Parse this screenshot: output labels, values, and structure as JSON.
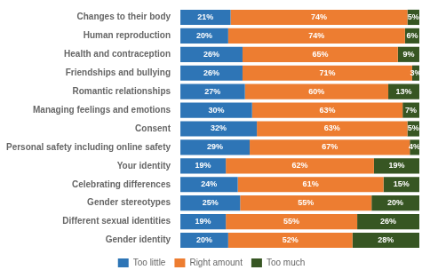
{
  "chart_data": {
    "type": "bar",
    "orientation": "horizontal",
    "stacked": true,
    "categories": [
      "Changes to their body",
      "Human reproduction",
      "Health and contraception",
      "Friendships and bullying",
      "Romantic relationships",
      "Managing feelings and emotions",
      "Consent",
      "Personal safety including online safety",
      "Your identity",
      "Celebrating differences",
      "Gender stereotypes",
      "Different sexual identities",
      "Gender identity"
    ],
    "series": [
      {
        "name": "Too little",
        "color": "#2E75B6",
        "values": [
          21,
          20,
          26,
          26,
          27,
          30,
          32,
          29,
          19,
          24,
          25,
          19,
          20
        ],
        "value_labels": [
          "21%",
          "20%",
          "26%",
          "26%",
          "27%",
          "30%",
          "32%",
          "29%",
          "19%",
          "24%",
          "25%",
          "19%",
          "20%"
        ]
      },
      {
        "name": "Right amount",
        "color": "#ED7D31",
        "values": [
          74,
          74,
          65,
          71,
          60,
          63,
          63,
          67,
          62,
          61,
          55,
          55,
          52
        ],
        "value_labels": [
          "74%",
          "74%",
          "65%",
          "71%",
          "60%",
          "63%",
          "63%",
          "67%",
          "62%",
          "61%",
          "55%",
          "55%",
          "52%"
        ]
      },
      {
        "name": "Too much",
        "color": "#375623",
        "values": [
          5,
          6,
          9,
          3,
          13,
          7,
          5,
          4,
          19,
          15,
          20,
          26,
          28
        ],
        "value_labels": [
          "5%",
          "6%",
          "9%",
          "3%",
          "13%",
          "7%",
          "5%",
          "4%",
          "19%",
          "15%",
          "20%",
          "26%",
          "28%"
        ]
      }
    ],
    "xlim": [
      0,
      100
    ],
    "data_labels": true,
    "tick_labels": "y",
    "grid": false,
    "legend": "bottom"
  }
}
